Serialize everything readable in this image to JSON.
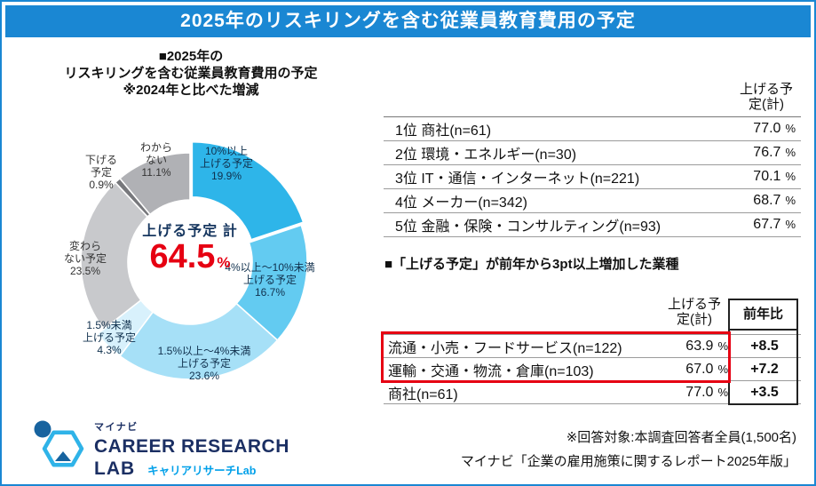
{
  "header": {
    "title": "2025年のリスキリングを含む従業員教育費用の予定"
  },
  "chart_data": [
    {
      "type": "pie",
      "title_lines": [
        "■2025年の",
        "リスキリングを含む従業員教育費用の予定",
        "※2024年と比べた増減"
      ],
      "unit": "%",
      "center_label": "上げる予定 計",
      "center_value": "64.5",
      "center_unit": "%",
      "segments": [
        {
          "label": "10%以上上げる予定",
          "label_lines": [
            "10%以上",
            "上げる予定"
          ],
          "value": 19.9,
          "display": "19.9%",
          "color": "#2eb5e9"
        },
        {
          "label": "4%以上〜10%未満上げる予定",
          "label_lines": [
            "4%以上〜10%未満",
            "上げる予定"
          ],
          "value": 16.7,
          "display": "16.7%",
          "color": "#63cbf1"
        },
        {
          "label": "1.5%以上〜4%未満上げる予定",
          "label_lines": [
            "1.5%以上〜4%未満",
            "上げる予定"
          ],
          "value": 23.6,
          "display": "23.6%",
          "color": "#a6e0f7"
        },
        {
          "label": "1.5%未満上げる予定",
          "label_lines": [
            "1.5%未満",
            "上げる予定"
          ],
          "value": 4.3,
          "display": "4.3%",
          "color": "#d8f1fc"
        },
        {
          "label": "変わらない予定",
          "label_lines": [
            "変わら",
            "ない予定"
          ],
          "value": 23.5,
          "display": "23.5%",
          "color": "#c8c9cc"
        },
        {
          "label": "下げる予定",
          "label_lines": [
            "下げる",
            "予定"
          ],
          "value": 0.9,
          "display": "0.9%",
          "color": "#77787c"
        },
        {
          "label": "わからない",
          "label_lines": [
            "わから",
            "ない"
          ],
          "value": 11.1,
          "display": "11.1%",
          "color": "#b0b1b5"
        }
      ]
    },
    {
      "type": "table",
      "value_header": "上げる予定(計)",
      "rows": [
        {
          "rank": "1位",
          "label": "商社(n=61)",
          "value": "77.0",
          "unit": "%"
        },
        {
          "rank": "2位",
          "label": "環境・エネルギー(n=30)",
          "value": "76.7",
          "unit": "%"
        },
        {
          "rank": "3位",
          "label": "IT・通信・インターネット(n=221)",
          "value": "70.1",
          "unit": "%"
        },
        {
          "rank": "4位",
          "label": "メーカー(n=342)",
          "value": "68.7",
          "unit": "%"
        },
        {
          "rank": "5位",
          "label": "金融・保険・コンサルティング(n=93)",
          "value": "67.7",
          "unit": "%"
        }
      ]
    },
    {
      "type": "table",
      "title": "■「上げる予定」が前年から3pt以上増加した業種",
      "value_header": "上げる予定(計)",
      "yoy_header": "前年比",
      "rows": [
        {
          "label": "流通・小売・フードサービス(n=122)",
          "value": "63.9",
          "unit": "%",
          "yoy": "+8.5",
          "highlight": true
        },
        {
          "label": "運輸・交通・物流・倉庫(n=103)",
          "value": "67.0",
          "unit": "%",
          "yoy": "+7.2",
          "highlight": true
        },
        {
          "label": "商社(n=61)",
          "value": "77.0",
          "unit": "%",
          "yoy": "+3.5",
          "highlight": false
        }
      ]
    }
  ],
  "logo": {
    "brand_small": "マイナビ",
    "brand_line1": "CAREER RESEARCH",
    "brand_line2": "LAB",
    "brand_sub": "キャリアリサーチLab"
  },
  "footnotes": [
    "※回答対象:本調査回答者全員(1,500名)",
    "マイナビ「企業の雇用施策に関するレポート2025年版」"
  ],
  "colors": {
    "header_bg": "#1a87d3",
    "accent_red": "#e60012",
    "navy_text": "#16365f",
    "logo_blue": "#00a0e9"
  }
}
